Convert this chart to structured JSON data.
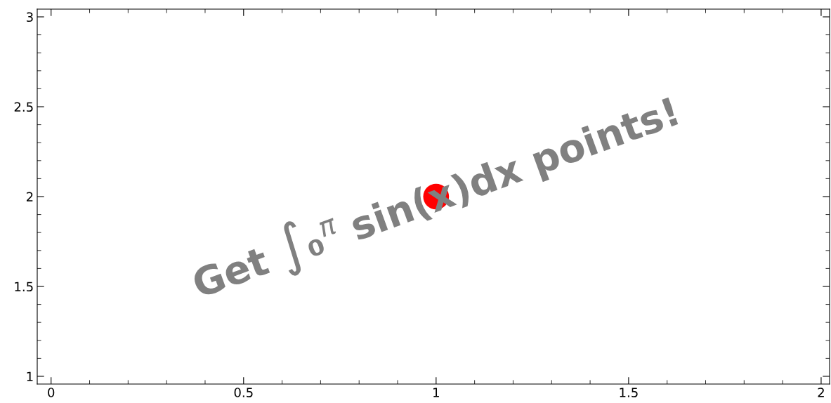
{
  "chart_data": {
    "type": "scatter",
    "x": [
      1
    ],
    "values": [
      2
    ],
    "color": "#ff0000",
    "marker": "circle",
    "xlim": [
      -0.036,
      2.022
    ],
    "ylim": [
      0.957,
      3.043
    ],
    "xticks": [
      0,
      0.5,
      1,
      1.5,
      2
    ],
    "yticks": [
      1,
      1.5,
      2,
      2.5,
      3
    ],
    "grid": false,
    "annotations": [
      {
        "text": "Get ∫₀$^{π}$ sin(x)dx points!",
        "x": 1,
        "y": 2
      }
    ]
  }
}
